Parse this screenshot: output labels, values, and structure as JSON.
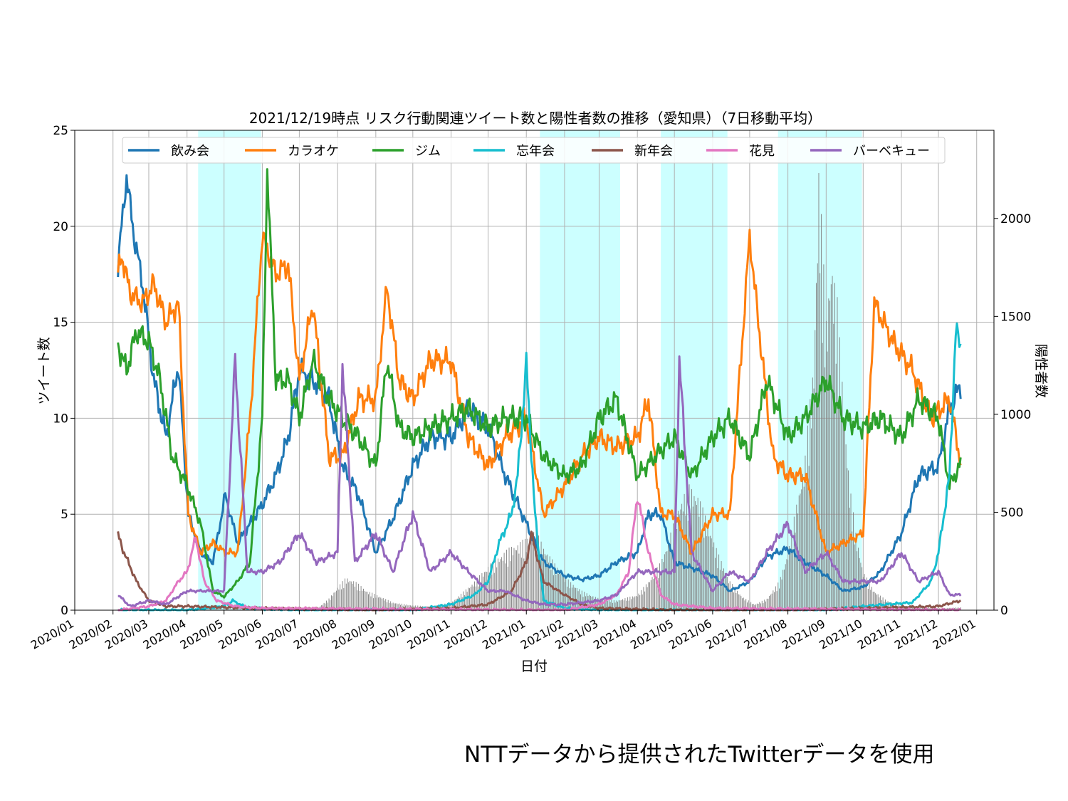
{
  "caption": "NTTデータから提供されたTwitterデータを使用",
  "chart_data": {
    "type": "line",
    "title": "2021/12/19時点 リスク行動関連ツイート数と陽性者数の推移（愛知県）（7日移動平均）",
    "xlabel": "日付",
    "ylabel": "ツイート数",
    "ylabel_right": "陽性者数",
    "xlim": [
      "2020-01-01",
      "2022-01-15"
    ],
    "ylim": [
      0,
      25
    ],
    "ylim_right": [
      0,
      2450
    ],
    "yticks": [
      0,
      5,
      10,
      15,
      20,
      25
    ],
    "yticks_right": [
      0,
      500,
      1000,
      1500,
      2000
    ],
    "x_tick_labels": [
      "2020/01",
      "2020/02",
      "2020/03",
      "2020/04",
      "2020/05",
      "2020/06",
      "2020/07",
      "2020/08",
      "2020/09",
      "2020/10",
      "2020/11",
      "2020/12",
      "2021/01",
      "2021/02",
      "2021/03",
      "2021/04",
      "2021/05",
      "2021/06",
      "2021/07",
      "2021/08",
      "2021/09",
      "2021/10",
      "2021/11",
      "2021/12",
      "2022/01"
    ],
    "grid": true,
    "legend_position": "top",
    "shaded_periods": [
      [
        "2020-04-10",
        "2020-05-31"
      ],
      [
        "2021-01-12",
        "2021-03-18"
      ],
      [
        "2021-04-20",
        "2021-06-13"
      ],
      [
        "2021-07-24",
        "2021-09-30"
      ]
    ],
    "shade_color": "#ccffff",
    "series": [
      {
        "name": "飲み会",
        "color": "#1f77b4",
        "x": [
          "2020-02-05",
          "2020-02-12",
          "2020-02-18",
          "2020-02-25",
          "2020-03-05",
          "2020-03-15",
          "2020-03-25",
          "2020-04-02",
          "2020-04-12",
          "2020-04-22",
          "2020-05-02",
          "2020-05-12",
          "2020-05-22",
          "2020-06-01",
          "2020-06-12",
          "2020-06-22",
          "2020-07-01",
          "2020-07-12",
          "2020-07-25",
          "2020-08-05",
          "2020-08-18",
          "2020-09-01",
          "2020-09-15",
          "2020-10-01",
          "2020-10-15",
          "2020-11-01",
          "2020-11-15",
          "2020-12-01",
          "2020-12-15",
          "2021-01-01",
          "2021-01-15",
          "2021-02-01",
          "2021-02-15",
          "2021-03-01",
          "2021-03-15",
          "2021-04-01",
          "2021-04-10",
          "2021-04-20",
          "2021-05-01",
          "2021-05-15",
          "2021-06-01",
          "2021-06-15",
          "2021-07-01",
          "2021-07-15",
          "2021-08-01",
          "2021-08-15",
          "2021-09-01",
          "2021-09-15",
          "2021-10-01",
          "2021-10-15",
          "2021-11-01",
          "2021-11-15",
          "2021-12-01",
          "2021-12-10",
          "2021-12-19"
        ],
        "y": [
          18,
          22.6,
          19.5,
          17,
          12,
          9,
          12.8,
          5,
          3,
          2.5,
          6,
          3.5,
          4.5,
          5.5,
          7,
          9,
          12.5,
          12,
          11,
          7.5,
          6,
          3,
          4.8,
          7.5,
          9,
          9,
          10.5,
          9.5,
          7,
          4.5,
          2.5,
          1.8,
          1.6,
          1.8,
          2.5,
          3,
          5,
          5,
          2.5,
          2.2,
          1.8,
          1,
          1.5,
          2.8,
          3.2,
          2.5,
          1.8,
          1,
          1.2,
          2,
          4,
          7,
          7.5,
          10.5,
          11.7
        ]
      },
      {
        "name": "カラオケ",
        "color": "#ff7f0e",
        "x": [
          "2020-02-05",
          "2020-02-08",
          "2020-02-15",
          "2020-02-25",
          "2020-03-05",
          "2020-03-15",
          "2020-03-25",
          "2020-04-02",
          "2020-04-12",
          "2020-04-22",
          "2020-05-02",
          "2020-05-12",
          "2020-05-22",
          "2020-06-01",
          "2020-06-12",
          "2020-06-22",
          "2020-07-01",
          "2020-07-12",
          "2020-07-25",
          "2020-08-05",
          "2020-08-18",
          "2020-09-01",
          "2020-09-10",
          "2020-09-20",
          "2020-10-01",
          "2020-10-15",
          "2020-11-01",
          "2020-11-15",
          "2020-12-01",
          "2020-12-15",
          "2021-01-01",
          "2021-01-15",
          "2021-02-01",
          "2021-02-15",
          "2021-03-01",
          "2021-03-15",
          "2021-04-01",
          "2021-04-10",
          "2021-04-20",
          "2021-05-01",
          "2021-05-15",
          "2021-06-01",
          "2021-06-15",
          "2021-07-01",
          "2021-07-08",
          "2021-07-20",
          "2021-08-01",
          "2021-08-15",
          "2021-09-01",
          "2021-09-15",
          "2021-10-01",
          "2021-10-10",
          "2021-10-25",
          "2021-11-10",
          "2021-11-25",
          "2021-12-10",
          "2021-12-19"
        ],
        "y": [
          17.5,
          18.5,
          16.5,
          16,
          17,
          15,
          16,
          5,
          3,
          3.5,
          3,
          3,
          10,
          19.5,
          17.5,
          18,
          12,
          16,
          8,
          8,
          11,
          11,
          16.8,
          12,
          11,
          13,
          13,
          9,
          7.5,
          9,
          10,
          5,
          6.5,
          8,
          9,
          8.5,
          9,
          11,
          5,
          5,
          3,
          5,
          5,
          19.5,
          15,
          8,
          7,
          7,
          3,
          3.5,
          4,
          16,
          14,
          12.5,
          10,
          11,
          7.7
        ]
      },
      {
        "name": "ジム",
        "color": "#2ca02c",
        "x": [
          "2020-02-05",
          "2020-02-12",
          "2020-02-20",
          "2020-03-01",
          "2020-03-10",
          "2020-03-20",
          "2020-04-01",
          "2020-04-12",
          "2020-04-22",
          "2020-05-01",
          "2020-05-12",
          "2020-05-22",
          "2020-06-01",
          "2020-06-05",
          "2020-06-12",
          "2020-06-22",
          "2020-07-01",
          "2020-07-12",
          "2020-07-25",
          "2020-08-05",
          "2020-08-18",
          "2020-09-01",
          "2020-09-10",
          "2020-09-20",
          "2020-10-01",
          "2020-10-15",
          "2020-11-01",
          "2020-11-15",
          "2020-12-01",
          "2020-12-15",
          "2021-01-01",
          "2021-01-15",
          "2021-02-01",
          "2021-02-15",
          "2021-03-01",
          "2021-03-15",
          "2021-04-01",
          "2021-04-15",
          "2021-05-01",
          "2021-05-15",
          "2021-06-01",
          "2021-06-15",
          "2021-07-01",
          "2021-07-15",
          "2021-08-01",
          "2021-08-15",
          "2021-09-01",
          "2021-09-15",
          "2021-10-01",
          "2021-10-15",
          "2021-11-01",
          "2021-11-15",
          "2021-12-01",
          "2021-12-10",
          "2021-12-19"
        ],
        "y": [
          13.8,
          12.5,
          14.5,
          14,
          12,
          8,
          6.5,
          4.5,
          1,
          0.7,
          1.5,
          2.5,
          10,
          23,
          12,
          12,
          10,
          13,
          11,
          10,
          9,
          7.5,
          13,
          9.5,
          9,
          9.5,
          10,
          10.5,
          9.5,
          10,
          10,
          8,
          7,
          7.5,
          10,
          11,
          7,
          8,
          9,
          7,
          9,
          10,
          8,
          12,
          9,
          10,
          12,
          10,
          9.5,
          10,
          9,
          11,
          10,
          6.5,
          7.6
        ]
      },
      {
        "name": "忘年会",
        "color": "#17becf",
        "x": [
          "2020-02-05",
          "2020-04-01",
          "2020-05-01",
          "2020-05-08",
          "2020-05-20",
          "2020-07-01",
          "2020-09-01",
          "2020-10-01",
          "2020-11-01",
          "2020-11-20",
          "2020-12-01",
          "2020-12-10",
          "2020-12-20",
          "2020-12-25",
          "2021-01-01",
          "2021-01-08",
          "2021-01-15",
          "2021-02-01",
          "2021-03-01",
          "2021-04-01",
          "2021-06-01",
          "2021-09-01",
          "2021-10-01",
          "2021-10-20",
          "2021-11-10",
          "2021-11-25",
          "2021-12-01",
          "2021-12-10",
          "2021-12-15",
          "2021-12-19"
        ],
        "y": [
          0,
          0,
          0.2,
          0.5,
          0.1,
          0,
          0,
          0,
          0.3,
          0.8,
          1.5,
          3.5,
          5,
          7,
          12.8,
          5,
          0.5,
          0.1,
          0,
          0,
          0,
          0,
          0.2,
          0.3,
          0.4,
          1.5,
          3,
          7,
          14.5,
          13.8
        ]
      },
      {
        "name": "新年会",
        "color": "#8c564b",
        "x": [
          "2020-02-05",
          "2020-02-10",
          "2020-02-20",
          "2020-03-01",
          "2020-03-15",
          "2020-04-01",
          "2020-06-01",
          "2020-09-01",
          "2020-11-01",
          "2020-12-01",
          "2020-12-20",
          "2021-01-01",
          "2021-01-05",
          "2021-01-15",
          "2021-02-01",
          "2021-02-15",
          "2021-03-01",
          "2021-05-01",
          "2021-08-01",
          "2021-10-01",
          "2021-12-01",
          "2021-12-19"
        ],
        "y": [
          3.9,
          3,
          1.5,
          0.5,
          0.2,
          0.2,
          0.1,
          0,
          0.1,
          0.3,
          1,
          2.5,
          4,
          1.5,
          0.8,
          0.3,
          0.1,
          0,
          0,
          0.1,
          0.2,
          0.5
        ]
      },
      {
        "name": "花見",
        "color": "#e377c2",
        "x": [
          "2020-02-05",
          "2020-03-01",
          "2020-03-15",
          "2020-03-25",
          "2020-04-01",
          "2020-04-08",
          "2020-04-15",
          "2020-04-25",
          "2020-05-10",
          "2020-06-01",
          "2021-02-01",
          "2021-03-01",
          "2021-03-15",
          "2021-03-25",
          "2021-04-01",
          "2021-04-10",
          "2021-04-20",
          "2021-05-01",
          "2021-06-01",
          "2021-12-19"
        ],
        "y": [
          0,
          0.2,
          0.5,
          1.5,
          2,
          3.8,
          1.5,
          0.5,
          0.2,
          0.1,
          0,
          0.3,
          0.8,
          2,
          6,
          3,
          0.8,
          0.3,
          0.1,
          0
        ]
      },
      {
        "name": "バーベキュー",
        "color": "#9467bd",
        "x": [
          "2020-02-05",
          "2020-02-15",
          "2020-03-01",
          "2020-03-15",
          "2020-04-01",
          "2020-04-15",
          "2020-05-01",
          "2020-05-10",
          "2020-05-20",
          "2020-06-01",
          "2020-06-15",
          "2020-07-01",
          "2020-07-15",
          "2020-08-01",
          "2020-08-05",
          "2020-08-15",
          "2020-09-01",
          "2020-09-15",
          "2020-10-01",
          "2020-10-15",
          "2020-11-01",
          "2020-11-15",
          "2020-12-01",
          "2020-12-15",
          "2021-01-01",
          "2021-01-15",
          "2021-02-01",
          "2021-03-01",
          "2021-03-15",
          "2021-04-01",
          "2021-04-15",
          "2021-05-01",
          "2021-05-05",
          "2021-05-15",
          "2021-06-01",
          "2021-06-15",
          "2021-07-01",
          "2021-07-15",
          "2021-08-01",
          "2021-08-15",
          "2021-09-01",
          "2021-09-15",
          "2021-10-01",
          "2021-10-15",
          "2021-11-01",
          "2021-11-15",
          "2021-12-01",
          "2021-12-10",
          "2021-12-19"
        ],
        "y": [
          0.8,
          0.2,
          0.5,
          0.3,
          1,
          1,
          1,
          13,
          2,
          2,
          2.5,
          4,
          2.5,
          3,
          12.8,
          2.5,
          4,
          2,
          5,
          2,
          3,
          2,
          1,
          1,
          0.5,
          0.3,
          0.3,
          0.5,
          0.8,
          2,
          2,
          2,
          13,
          3,
          1,
          2,
          1.5,
          3,
          4.5,
          2,
          3,
          1.5,
          1.5,
          1.5,
          3,
          1.5,
          2,
          0.8,
          0.8
        ]
      }
    ],
    "positives_bars": {
      "color": "#808080",
      "axis": "right",
      "x": [
        "2020-03-01",
        "2020-07-15",
        "2020-07-25",
        "2020-08-01",
        "2020-08-08",
        "2020-08-15",
        "2020-08-25",
        "2020-09-05",
        "2020-09-15",
        "2020-10-01",
        "2020-10-15",
        "2020-11-01",
        "2020-11-10",
        "2020-11-20",
        "2020-12-01",
        "2020-12-10",
        "2020-12-20",
        "2021-01-01",
        "2021-01-08",
        "2021-01-15",
        "2021-01-25",
        "2021-02-05",
        "2021-02-15",
        "2021-03-01",
        "2021-03-15",
        "2021-04-01",
        "2021-04-10",
        "2021-04-20",
        "2021-04-28",
        "2021-05-05",
        "2021-05-12",
        "2021-05-20",
        "2021-05-28",
        "2021-06-05",
        "2021-06-15",
        "2021-06-25",
        "2021-07-05",
        "2021-07-15",
        "2021-07-25",
        "2021-08-01",
        "2021-08-08",
        "2021-08-15",
        "2021-08-22",
        "2021-08-26",
        "2021-09-01",
        "2021-09-05",
        "2021-09-10",
        "2021-09-15",
        "2021-09-20",
        "2021-09-25",
        "2021-10-01",
        "2021-10-10",
        "2021-10-20",
        "2021-11-01",
        "2021-12-01",
        "2021-12-19"
      ],
      "y": [
        2,
        5,
        60,
        120,
        170,
        150,
        100,
        70,
        40,
        25,
        20,
        40,
        90,
        150,
        230,
        280,
        330,
        370,
        420,
        330,
        230,
        150,
        100,
        60,
        50,
        80,
        150,
        250,
        400,
        550,
        650,
        600,
        450,
        300,
        150,
        70,
        30,
        60,
        150,
        300,
        550,
        800,
        1300,
        2300,
        1500,
        1850,
        1600,
        1100,
        650,
        400,
        200,
        100,
        50,
        25,
        10,
        15
      ]
    }
  }
}
